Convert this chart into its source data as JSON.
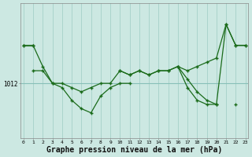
{
  "background_color": "#cce8e2",
  "line_color": "#1a6b1a",
  "grid_color": "#aad4cc",
  "xlabel": "Graphe pression niveau de la mer (hPa)",
  "xlabel_fontsize": 7,
  "figsize": [
    3.2,
    2.0
  ],
  "dpi": 100,
  "series": [
    {
      "name": "line1_top",
      "x": [
        0,
        1,
        2,
        3,
        4,
        5,
        6,
        7,
        8,
        9,
        10,
        11,
        12,
        13,
        14,
        15,
        16,
        17,
        18,
        19,
        20,
        21,
        22,
        23
      ],
      "y": [
        1016.5,
        1016.5,
        null,
        null,
        null,
        null,
        null,
        null,
        null,
        null,
        null,
        null,
        null,
        null,
        null,
        null,
        null,
        null,
        null,
        null,
        null,
        null,
        null,
        null
      ]
    },
    {
      "name": "line2_upper_long",
      "x": [
        0,
        1,
        2,
        3,
        4,
        5,
        6,
        7,
        8,
        9,
        10,
        11,
        12,
        13,
        14,
        15,
        16,
        17,
        18,
        19,
        20,
        21,
        22,
        23
      ],
      "y": [
        1016.5,
        1016.5,
        1014.0,
        1012.0,
        1012.0,
        1011.5,
        1011.0,
        1011.5,
        1012.0,
        1012.0,
        1013.5,
        1013.0,
        1013.5,
        1013.0,
        1013.5,
        1013.5,
        1014.0,
        1013.5,
        1014.0,
        1014.5,
        1015.0,
        1019.0,
        1016.5,
        1016.5
      ]
    },
    {
      "name": "line3_dip",
      "x": [
        1,
        2,
        3,
        4,
        5,
        6,
        7,
        8,
        9,
        10,
        11
      ],
      "y": [
        1013.5,
        1013.5,
        1012.0,
        1011.5,
        1010.0,
        1009.0,
        1008.5,
        1010.5,
        1011.5,
        1012.0,
        1012.0
      ]
    },
    {
      "name": "line4_mid",
      "x": [
        10,
        11,
        12,
        13,
        14,
        15,
        16,
        17,
        18,
        19,
        20,
        21,
        22,
        23
      ],
      "y": [
        1013.5,
        1013.0,
        1013.5,
        1013.0,
        1013.5,
        1013.5,
        1014.0,
        1012.5,
        1011.0,
        1010.0,
        1009.5,
        null,
        1009.5,
        null
      ]
    },
    {
      "name": "line5_bottom_right",
      "x": [
        16,
        17,
        18,
        19,
        20,
        21,
        22,
        23
      ],
      "y": [
        1014.0,
        1011.5,
        1010.0,
        1009.5,
        1009.5,
        1019.0,
        1016.5,
        1016.5
      ]
    }
  ],
  "xlim_min": -0.3,
  "xlim_max": 23.3,
  "ylim_min": 1005.5,
  "ylim_max": 1021.5,
  "ytick_val": 1012,
  "ytick_label": "1012",
  "xticks": [
    0,
    1,
    2,
    3,
    4,
    5,
    6,
    7,
    8,
    9,
    10,
    11,
    12,
    13,
    14,
    15,
    16,
    17,
    18,
    19,
    20,
    21,
    22,
    23
  ]
}
